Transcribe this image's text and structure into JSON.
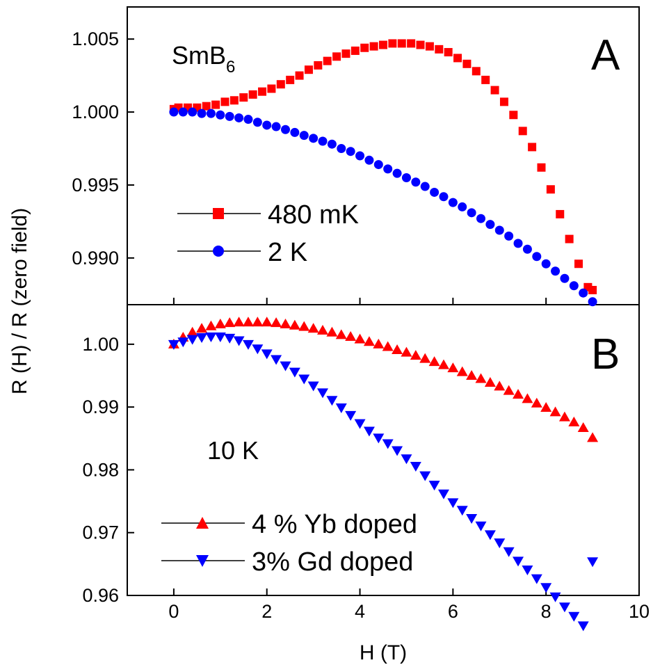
{
  "chart_data": [
    {
      "type": "scatter",
      "panel": "A",
      "annotation_main": "SmB",
      "annotation_sub": "6",
      "xlim": [
        -1,
        10
      ],
      "ylim": [
        0.9868,
        1.0072
      ],
      "yticks": [
        "0.990",
        "0.995",
        "1.000",
        "1.005"
      ],
      "ytick_values": [
        0.99,
        0.995,
        1.0,
        1.005
      ],
      "legend_position": "lower-left",
      "series": [
        {
          "name": "480 mK",
          "color": "#ff0000",
          "marker": "square",
          "x": [
            0,
            0.1,
            0.3,
            0.5,
            0.7,
            0.9,
            1.1,
            1.3,
            1.5,
            1.7,
            1.9,
            2.1,
            2.3,
            2.5,
            2.7,
            2.9,
            3.1,
            3.3,
            3.5,
            3.7,
            3.9,
            4.1,
            4.3,
            4.5,
            4.7,
            4.9,
            5.1,
            5.3,
            5.5,
            5.7,
            5.9,
            6.1,
            6.3,
            6.5,
            6.7,
            6.9,
            7.1,
            7.3,
            7.5,
            7.7,
            7.9,
            8.1,
            8.3,
            8.5,
            8.7,
            8.9,
            9.0
          ],
          "y": [
            1.0002,
            1.0003,
            1.0003,
            1.0003,
            1.0004,
            1.0005,
            1.0007,
            1.0008,
            1.001,
            1.0012,
            1.0014,
            1.0016,
            1.0019,
            1.0022,
            1.0025,
            1.0029,
            1.0032,
            1.0035,
            1.0038,
            1.004,
            1.0042,
            1.0044,
            1.0045,
            1.0046,
            1.0047,
            1.0047,
            1.0047,
            1.0046,
            1.0045,
            1.0043,
            1.0041,
            1.0037,
            1.0033,
            1.0028,
            1.0022,
            1.0015,
            1.0007,
            0.9998,
            0.9987,
            0.9976,
            0.9962,
            0.9947,
            0.993,
            0.9913,
            0.9896,
            0.988,
            0.9878
          ]
        },
        {
          "name": "2 K",
          "color": "#0000ff",
          "marker": "circle",
          "x": [
            0,
            0.2,
            0.4,
            0.6,
            0.8,
            1.0,
            1.2,
            1.4,
            1.6,
            1.8,
            2.0,
            2.2,
            2.4,
            2.6,
            2.8,
            3.0,
            3.2,
            3.4,
            3.6,
            3.8,
            4.0,
            4.2,
            4.4,
            4.6,
            4.8,
            5.0,
            5.2,
            5.4,
            5.6,
            5.8,
            6.0,
            6.2,
            6.4,
            6.6,
            6.8,
            7.0,
            7.2,
            7.4,
            7.6,
            7.8,
            8.0,
            8.2,
            8.4,
            8.6,
            8.8,
            9.0
          ],
          "y": [
            1.0,
            1.0,
            1.0,
            0.9999,
            0.9999,
            0.9998,
            0.9997,
            0.9996,
            0.9995,
            0.9993,
            0.9991,
            0.999,
            0.9988,
            0.9986,
            0.9984,
            0.9982,
            0.998,
            0.9978,
            0.9975,
            0.9973,
            0.997,
            0.9967,
            0.9964,
            0.9961,
            0.9958,
            0.9955,
            0.9952,
            0.9949,
            0.9945,
            0.9942,
            0.9938,
            0.9935,
            0.9931,
            0.9927,
            0.9923,
            0.9919,
            0.9915,
            0.991,
            0.9906,
            0.9901,
            0.9896,
            0.9891,
            0.9886,
            0.9881,
            0.9876,
            0.987
          ]
        }
      ]
    },
    {
      "type": "scatter",
      "panel": "B",
      "annotation_main": "10 K",
      "xlim": [
        -1,
        10
      ],
      "ylim": [
        0.96,
        1.0063
      ],
      "yticks": [
        "0.96",
        "0.97",
        "0.98",
        "0.99",
        "1.00"
      ],
      "ytick_values": [
        0.96,
        0.97,
        0.98,
        0.99,
        1.0
      ],
      "xticks": [
        "0",
        "2",
        "4",
        "6",
        "8",
        "10"
      ],
      "xtick_values": [
        0,
        2,
        4,
        6,
        8,
        10
      ],
      "xlabel": "H (T)",
      "legend_position": "lower-left",
      "series": [
        {
          "name": "4 % Yb doped",
          "color": "#ff0000",
          "marker": "triangle-up",
          "x": [
            0,
            0.2,
            0.4,
            0.6,
            0.8,
            1.0,
            1.2,
            1.4,
            1.6,
            1.8,
            2.0,
            2.2,
            2.4,
            2.6,
            2.8,
            3.0,
            3.2,
            3.4,
            3.6,
            3.8,
            4.0,
            4.2,
            4.4,
            4.6,
            4.8,
            5.0,
            5.2,
            5.4,
            5.6,
            5.8,
            6.0,
            6.2,
            6.4,
            6.6,
            6.8,
            7.0,
            7.2,
            7.4,
            7.6,
            7.8,
            8.0,
            8.2,
            8.4,
            8.6,
            8.8,
            9.0
          ],
          "y": [
            1.0,
            1.0011,
            1.0019,
            1.0025,
            1.0029,
            1.0032,
            1.0034,
            1.0035,
            1.0035,
            1.0035,
            1.0035,
            1.0034,
            1.0032,
            1.003,
            1.0028,
            1.0025,
            1.0022,
            1.0019,
            1.0015,
            1.0012,
            1.0008,
            1.0004,
            1.0,
            0.9996,
            0.9991,
            0.9987,
            0.9982,
            0.9977,
            0.9972,
            0.9967,
            0.9962,
            0.9956,
            0.995,
            0.9945,
            0.9939,
            0.9933,
            0.9926,
            0.992,
            0.9913,
            0.9906,
            0.9899,
            0.9892,
            0.9884,
            0.9876,
            0.9867,
            0.9851
          ]
        },
        {
          "name": "3% Gd doped",
          "color": "#0000ff",
          "marker": "triangle-down",
          "x": [
            0,
            0.2,
            0.4,
            0.6,
            0.8,
            1.0,
            1.2,
            1.4,
            1.6,
            1.8,
            2.0,
            2.2,
            2.4,
            2.6,
            2.8,
            3.0,
            3.2,
            3.4,
            3.6,
            3.8,
            4.0,
            4.2,
            4.4,
            4.6,
            4.8,
            5.0,
            5.2,
            5.4,
            5.6,
            5.8,
            6.0,
            6.2,
            6.4,
            6.6,
            6.8,
            7.0,
            7.2,
            7.4,
            7.6,
            7.8,
            8.0,
            8.2,
            8.4,
            8.6,
            8.8,
            9.0
          ],
          "y": [
            1.0,
            1.0004,
            1.0008,
            1.0011,
            1.0012,
            1.0012,
            1.001,
            1.0006,
            1.0,
            0.9993,
            0.9985,
            0.9976,
            0.9966,
            0.9956,
            0.9945,
            0.9934,
            0.9923,
            0.9911,
            0.9899,
            0.9887,
            0.9874,
            0.9862,
            0.9851,
            0.9842,
            0.9831,
            0.9818,
            0.9806,
            0.9791,
            0.9776,
            0.9762,
            0.9748,
            0.9736,
            0.9723,
            0.9711,
            0.9697,
            0.9684,
            0.967,
            0.9655,
            0.9641,
            0.9627,
            0.9613,
            0.9598,
            0.9582,
            0.9567,
            0.9552,
            0.9654
          ]
        }
      ]
    }
  ],
  "ylabel": "R (H) / R (zero field)"
}
